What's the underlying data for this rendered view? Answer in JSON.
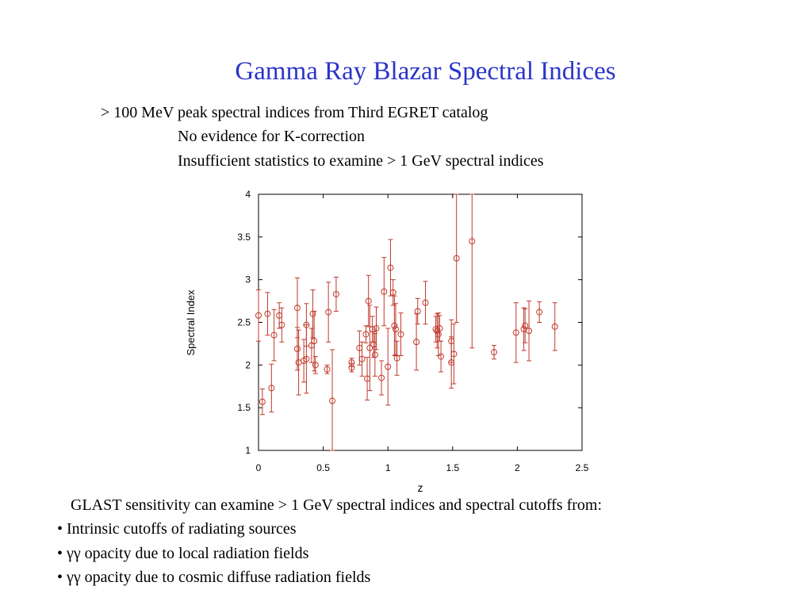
{
  "slide": {
    "title": "Gamma Ray Blazar Spectral Indices",
    "intro": "> 100 MeV peak spectral indices from Third EGRET catalog",
    "sub_points": [
      "No evidence for K-correction",
      "Insufficient statistics to examine > 1 GeV spectral indices"
    ],
    "footer_lead": "GLAST sensitivity can examine > 1 GeV spectral indices and spectral cutoffs from:",
    "bullets": [
      "• Intrinsic cutoffs of radiating sources",
      "• γγ opacity due to local radiation fields",
      "• γγ opacity due to cosmic diffuse radiation fields"
    ]
  },
  "chart_data": {
    "type": "scatter",
    "xlabel": "z",
    "ylabel": "Spectral Index",
    "xlim": [
      0,
      2.5
    ],
    "ylim": [
      1,
      4
    ],
    "x_ticks": [
      "0",
      "0.5",
      "1",
      "1.5",
      "2",
      "2.5"
    ],
    "y_ticks": [
      "1",
      "1.5",
      "2",
      "2.5",
      "3",
      "3.5",
      "4"
    ],
    "grid": false,
    "marker_color": "#c0392b",
    "points": [
      {
        "x": 0.0,
        "y": 2.58,
        "err": 0.3
      },
      {
        "x": 0.03,
        "y": 1.57,
        "err": 0.15
      },
      {
        "x": 0.07,
        "y": 2.6,
        "err": 0.25
      },
      {
        "x": 0.1,
        "y": 1.73,
        "err": 0.28
      },
      {
        "x": 0.12,
        "y": 2.35,
        "err": 0.3
      },
      {
        "x": 0.16,
        "y": 2.58,
        "err": 0.15
      },
      {
        "x": 0.18,
        "y": 2.47,
        "err": 0.2
      },
      {
        "x": 0.3,
        "y": 2.67,
        "err": 0.35
      },
      {
        "x": 0.3,
        "y": 2.19,
        "err": 0.25
      },
      {
        "x": 0.31,
        "y": 2.03,
        "err": 0.38
      },
      {
        "x": 0.35,
        "y": 2.05,
        "err": 0.25
      },
      {
        "x": 0.37,
        "y": 2.47,
        "err": 0.25
      },
      {
        "x": 0.37,
        "y": 2.07,
        "err": 0.4
      },
      {
        "x": 0.41,
        "y": 2.23,
        "err": 0.2
      },
      {
        "x": 0.42,
        "y": 2.6,
        "err": 0.28
      },
      {
        "x": 0.43,
        "y": 2.28,
        "err": 0.35
      },
      {
        "x": 0.44,
        "y": 2.0,
        "err": 0.1
      },
      {
        "x": 0.53,
        "y": 1.95,
        "err": 0.05
      },
      {
        "x": 0.54,
        "y": 2.62,
        "err": 0.35
      },
      {
        "x": 0.57,
        "y": 1.58,
        "err": 0.6
      },
      {
        "x": 0.6,
        "y": 2.83,
        "err": 0.2
      },
      {
        "x": 0.72,
        "y": 2.03,
        "err": 0.05
      },
      {
        "x": 0.72,
        "y": 1.97,
        "err": 0.05
      },
      {
        "x": 0.78,
        "y": 2.2,
        "err": 0.2
      },
      {
        "x": 0.8,
        "y": 2.07,
        "err": 0.2
      },
      {
        "x": 0.83,
        "y": 2.36,
        "err": 0.1
      },
      {
        "x": 0.84,
        "y": 1.84,
        "err": 0.25
      },
      {
        "x": 0.85,
        "y": 2.75,
        "err": 0.3
      },
      {
        "x": 0.86,
        "y": 2.2,
        "err": 0.5
      },
      {
        "x": 0.88,
        "y": 2.42,
        "err": 0.15
      },
      {
        "x": 0.89,
        "y": 2.24,
        "err": 0.15
      },
      {
        "x": 0.9,
        "y": 2.12,
        "err": 0.25
      },
      {
        "x": 0.91,
        "y": 2.43,
        "err": 0.25
      },
      {
        "x": 0.95,
        "y": 1.85,
        "err": 0.2
      },
      {
        "x": 0.97,
        "y": 2.86,
        "err": 0.4
      },
      {
        "x": 1.0,
        "y": 1.98,
        "err": 0.45
      },
      {
        "x": 1.02,
        "y": 3.14,
        "err": 0.33
      },
      {
        "x": 1.04,
        "y": 2.85,
        "err": 0.15
      },
      {
        "x": 1.05,
        "y": 2.46,
        "err": 0.35
      },
      {
        "x": 1.06,
        "y": 2.42,
        "err": 0.3
      },
      {
        "x": 1.07,
        "y": 2.08,
        "err": 0.2
      },
      {
        "x": 1.1,
        "y": 2.36,
        "err": 0.25
      },
      {
        "x": 1.22,
        "y": 2.27,
        "err": 0.33
      },
      {
        "x": 1.23,
        "y": 2.63,
        "err": 0.15
      },
      {
        "x": 1.29,
        "y": 2.73,
        "err": 0.25
      },
      {
        "x": 1.37,
        "y": 2.42,
        "err": 0.15
      },
      {
        "x": 1.38,
        "y": 2.4,
        "err": 0.2
      },
      {
        "x": 1.39,
        "y": 2.36,
        "err": 0.25
      },
      {
        "x": 1.4,
        "y": 2.43,
        "err": 0.15
      },
      {
        "x": 1.41,
        "y": 2.1,
        "err": 0.18
      },
      {
        "x": 1.49,
        "y": 2.03,
        "err": 0.3
      },
      {
        "x": 1.49,
        "y": 2.28,
        "err": 0.25
      },
      {
        "x": 1.51,
        "y": 2.13,
        "err": 0.35
      },
      {
        "x": 1.53,
        "y": 3.25,
        "err": 0.75
      },
      {
        "x": 1.65,
        "y": 3.45,
        "err": 1.25
      },
      {
        "x": 1.82,
        "y": 2.15,
        "err": 0.08
      },
      {
        "x": 1.99,
        "y": 2.38,
        "err": 0.35
      },
      {
        "x": 2.05,
        "y": 2.42,
        "err": 0.25
      },
      {
        "x": 2.06,
        "y": 2.46,
        "err": 0.2
      },
      {
        "x": 2.09,
        "y": 2.4,
        "err": 0.35
      },
      {
        "x": 2.17,
        "y": 2.62,
        "err": 0.12
      },
      {
        "x": 2.29,
        "y": 2.45,
        "err": 0.28
      }
    ]
  }
}
